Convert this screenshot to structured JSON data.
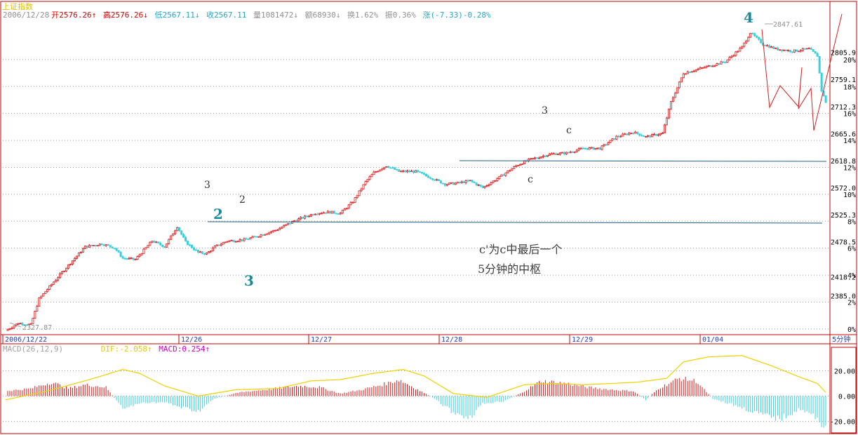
{
  "header": {
    "stock_name": "上证指数",
    "date": "2006/12/28",
    "open_label": "开",
    "open": "2576.26",
    "high_label": "高",
    "high": "2576.26",
    "low_label": "低",
    "low": "2567.11",
    "close_label": "收",
    "close": "2567.11",
    "volume_label": "量",
    "volume": "1081472",
    "amount_label": "额",
    "amount": "68930",
    "turnover_label": "换",
    "turnover": "1.62%",
    "amplitude_label": "振",
    "amplitude": "0.36%",
    "change_label": "涨",
    "change": "(-7.33)-0.28%"
  },
  "macd_header": {
    "title": "MACD(26,12,9)",
    "dif_label": "DIF:",
    "dif": "-2.058",
    "macd_label": "MACD:",
    "macd": "0.254"
  },
  "colors": {
    "up": "#e01818",
    "down": "#38d0e0",
    "frame": "#c00000",
    "macd_line": "#f0d000",
    "axis_text": "#000000",
    "info_text": "#20a8c8"
  },
  "chart_data": {
    "type": "candlestick",
    "price_axis": {
      "ticks": [
        "2805.9",
        "2759.1",
        "2712.3",
        "2665.6",
        "2618.8",
        "2572.0",
        "2525.3",
        "2478.5",
        "2418.2",
        "2385.0"
      ],
      "tick_values": [
        2805.9,
        2759.1,
        2712.3,
        2665.6,
        2618.8,
        2572.0,
        2525.3,
        2478.5,
        2418.2,
        2385.0
      ],
      "percent_ticks": [
        "20%",
        "18%",
        "16%",
        "14%",
        "12%",
        "10%",
        "8%",
        "6%",
        "4%",
        "2%",
        "0%"
      ],
      "ylim": [
        2318,
        2860
      ]
    },
    "time_axis": {
      "labels": [
        "2006/12/22",
        "12/26",
        "12/27",
        "12/28",
        "12/29",
        "01/04"
      ],
      "period": "5分钟"
    },
    "price_markers": {
      "high": "2847.61",
      "low": "2327.87"
    },
    "waypoints": [
      [
        0,
        2325
      ],
      [
        6,
        2338
      ],
      [
        12,
        2335
      ],
      [
        16,
        2380
      ],
      [
        28,
        2430
      ],
      [
        38,
        2470
      ],
      [
        46,
        2475
      ],
      [
        52,
        2468
      ],
      [
        56,
        2450
      ],
      [
        62,
        2448
      ],
      [
        70,
        2480
      ],
      [
        76,
        2470
      ],
      [
        82,
        2505
      ],
      [
        86,
        2478
      ],
      [
        92,
        2460
      ],
      [
        96,
        2458
      ],
      [
        100,
        2470
      ],
      [
        106,
        2480
      ],
      [
        114,
        2482
      ],
      [
        120,
        2488
      ],
      [
        130,
        2500
      ],
      [
        138,
        2515
      ],
      [
        148,
        2528
      ],
      [
        154,
        2530
      ],
      [
        160,
        2528
      ],
      [
        166,
        2548
      ],
      [
        172,
        2582
      ],
      [
        176,
        2598
      ],
      [
        182,
        2610
      ],
      [
        188,
        2600
      ],
      [
        196,
        2600
      ],
      [
        204,
        2588
      ],
      [
        210,
        2578
      ],
      [
        216,
        2580
      ],
      [
        222,
        2584
      ],
      [
        228,
        2572
      ],
      [
        236,
        2590
      ],
      [
        244,
        2610
      ],
      [
        250,
        2620
      ],
      [
        260,
        2630
      ],
      [
        268,
        2632
      ],
      [
        276,
        2640
      ],
      [
        284,
        2640
      ],
      [
        292,
        2660
      ],
      [
        300,
        2668
      ],
      [
        306,
        2660
      ],
      [
        314,
        2666
      ],
      [
        318,
        2720
      ],
      [
        324,
        2770
      ],
      [
        334,
        2780
      ],
      [
        344,
        2790
      ],
      [
        352,
        2815
      ],
      [
        356,
        2840
      ],
      [
        362,
        2820
      ],
      [
        368,
        2812
      ],
      [
        376,
        2808
      ],
      [
        384,
        2812
      ],
      [
        388,
        2800
      ],
      [
        390,
        2740
      ],
      [
        392,
        2720
      ]
    ],
    "annotations": [
      {
        "text": "4",
        "kind": "wave"
      },
      {
        "text": "2",
        "kind": "wave"
      },
      {
        "text": "3",
        "kind": "wave"
      },
      {
        "text": "3",
        "kind": "note"
      },
      {
        "text": "2",
        "kind": "note"
      },
      {
        "text": "3",
        "kind": "note"
      },
      {
        "text": "c",
        "kind": "note"
      },
      {
        "text": "c",
        "kind": "note"
      },
      {
        "text": "c'为c中最后一个",
        "kind": "note"
      },
      {
        "text": "5分钟的中枢",
        "kind": "note"
      }
    ],
    "macd": {
      "ticks": [
        "20.00",
        "0.00",
        "-20.00"
      ],
      "tick_values": [
        20,
        0,
        -20
      ],
      "ylim": [
        -28,
        33
      ],
      "dif_waypoints": [
        [
          0,
          -3
        ],
        [
          20,
          4
        ],
        [
          40,
          13
        ],
        [
          56,
          21
        ],
        [
          64,
          18
        ],
        [
          76,
          8
        ],
        [
          92,
          0
        ],
        [
          110,
          5
        ],
        [
          130,
          6
        ],
        [
          146,
          12
        ],
        [
          160,
          13
        ],
        [
          176,
          18
        ],
        [
          190,
          21
        ],
        [
          200,
          16
        ],
        [
          214,
          2
        ],
        [
          230,
          -1
        ],
        [
          248,
          9
        ],
        [
          262,
          10
        ],
        [
          276,
          9
        ],
        [
          290,
          10
        ],
        [
          302,
          11
        ],
        [
          316,
          14
        ],
        [
          324,
          27
        ],
        [
          336,
          31
        ],
        [
          352,
          32
        ],
        [
          366,
          24
        ],
        [
          378,
          16
        ],
        [
          388,
          10
        ],
        [
          392,
          3
        ]
      ],
      "hist_waypoints": [
        [
          0,
          4
        ],
        [
          12,
          6
        ],
        [
          22,
          11
        ],
        [
          30,
          6
        ],
        [
          38,
          9
        ],
        [
          48,
          7
        ],
        [
          56,
          -10
        ],
        [
          66,
          -5
        ],
        [
          76,
          -5
        ],
        [
          82,
          -8
        ],
        [
          92,
          -12
        ],
        [
          100,
          -2
        ],
        [
          112,
          3
        ],
        [
          124,
          5
        ],
        [
          140,
          8
        ],
        [
          150,
          7
        ],
        [
          160,
          2
        ],
        [
          170,
          5
        ],
        [
          180,
          9
        ],
        [
          188,
          13
        ],
        [
          196,
          6
        ],
        [
          204,
          -1
        ],
        [
          214,
          -13
        ],
        [
          222,
          -17
        ],
        [
          228,
          -6
        ],
        [
          238,
          -4
        ],
        [
          246,
          2
        ],
        [
          256,
          12
        ],
        [
          268,
          10
        ],
        [
          278,
          7
        ],
        [
          290,
          5
        ],
        [
          300,
          4
        ],
        [
          306,
          -3
        ],
        [
          312,
          6
        ],
        [
          322,
          14
        ],
        [
          330,
          12
        ],
        [
          338,
          -2
        ],
        [
          350,
          -8
        ],
        [
          360,
          -14
        ],
        [
          370,
          -18
        ],
        [
          380,
          -10
        ],
        [
          386,
          -16
        ],
        [
          392,
          -24
        ]
      ]
    }
  }
}
